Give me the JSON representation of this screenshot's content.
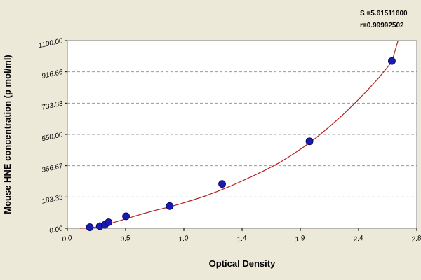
{
  "chart_data": {
    "type": "scatter",
    "title": "",
    "xlabel": "Optical Density",
    "ylabel": "Mouse HNE concentration (p mol/ml)",
    "xlim": [
      0.0,
      2.8
    ],
    "ylim": [
      0.0,
      1100.0
    ],
    "x_ticks": [
      "0.0",
      "0.5",
      "1.0",
      "1.4",
      "1.9",
      "2.4",
      "2.8"
    ],
    "y_ticks": [
      "0.00",
      "183.33",
      "366.67",
      "550.00",
      "733.33",
      "916.66",
      "1100.00"
    ],
    "grid": "horizontal-dashed",
    "legend": "none",
    "stats": [
      "S =5.61511600",
      "r=0.99992502"
    ],
    "colors": {
      "points": "#1a1ab0",
      "curve": "#b22222",
      "background": "#ece9d8",
      "plot": "#ffffff",
      "grid": "#9a9a9a"
    },
    "series": [
      {
        "x": [
          0.18,
          0.26,
          0.3,
          0.33,
          0.47,
          0.82,
          1.24,
          1.94,
          2.6
        ],
        "y": [
          6,
          12,
          20,
          35,
          70,
          130,
          260,
          510,
          980
        ]
      }
    ],
    "fit_curve": {
      "x": [
        0.1,
        0.2,
        0.3,
        0.4,
        0.5,
        0.6,
        0.7,
        0.8,
        0.9,
        1.0,
        1.1,
        1.2,
        1.3,
        1.4,
        1.5,
        1.6,
        1.7,
        1.8,
        1.9,
        2.0,
        2.1,
        2.2,
        2.3,
        2.4,
        2.5,
        2.6,
        2.65
      ],
      "y": [
        0,
        3,
        18,
        40,
        62,
        84,
        104,
        122,
        142,
        164,
        188,
        215,
        245,
        277,
        311,
        346,
        385,
        430,
        480,
        535,
        595,
        660,
        730,
        805,
        885,
        975,
        1100
      ]
    }
  }
}
